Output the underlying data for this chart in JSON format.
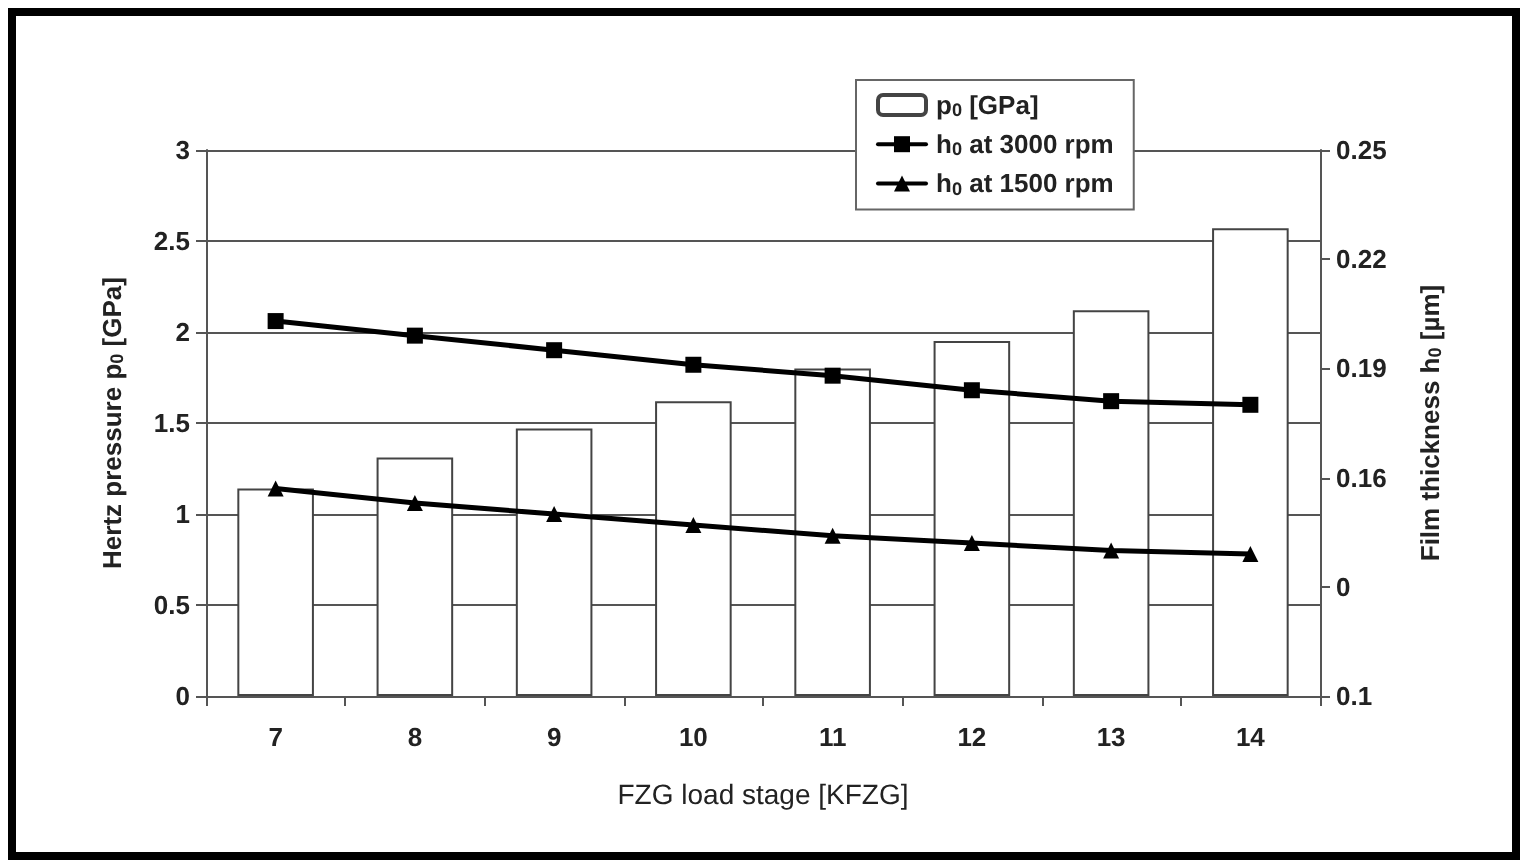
{
  "chart_data": {
    "type": "bar",
    "categories": [
      "7",
      "8",
      "9",
      "10",
      "11",
      "12",
      "13",
      "14"
    ],
    "xlabel": "FZG load stage [KFZG]",
    "ylabel": "Hertz pressure p$_{0}$ [GPa]",
    "y2label": "Film thickness h$_{0}$ [µm]",
    "series": [
      {
        "name": "p$_{0}$ [GPa]",
        "color": "#ffffff",
        "values": [
          1.14,
          1.31,
          1.47,
          1.62,
          1.8,
          1.95,
          2.12,
          2.57
        ]
      },
      {
        "name": "h$_{0}$ at 3000 rpm",
        "type": "line",
        "axis": "y2",
        "marker": "square",
        "color": "#000000",
        "values": [
          0.203,
          0.199,
          0.195,
          0.191,
          0.188,
          0.184,
          0.181,
          0.18
        ]
      },
      {
        "name": "h$_{0}$ at 1500 rpm",
        "type": "line",
        "axis": "y2",
        "marker": "triangle",
        "color": "#000000",
        "values": [
          0.157,
          0.153,
          0.15,
          0.147,
          0.144,
          0.142,
          0.14,
          0.139
        ]
      }
    ],
    "ylim": [
      0,
      3
    ],
    "yticks": [
      0,
      0.5,
      1,
      1.5,
      2,
      2.5,
      3
    ],
    "y2lim": [
      0.1,
      0.25
    ],
    "y2ticks": [
      0.1,
      {
        "value": 0.13,
        "label": "0"
      },
      0.16,
      0.19,
      0.22,
      0.25
    ],
    "grid": "y",
    "legend": "top",
    "line_style": "solid"
  }
}
